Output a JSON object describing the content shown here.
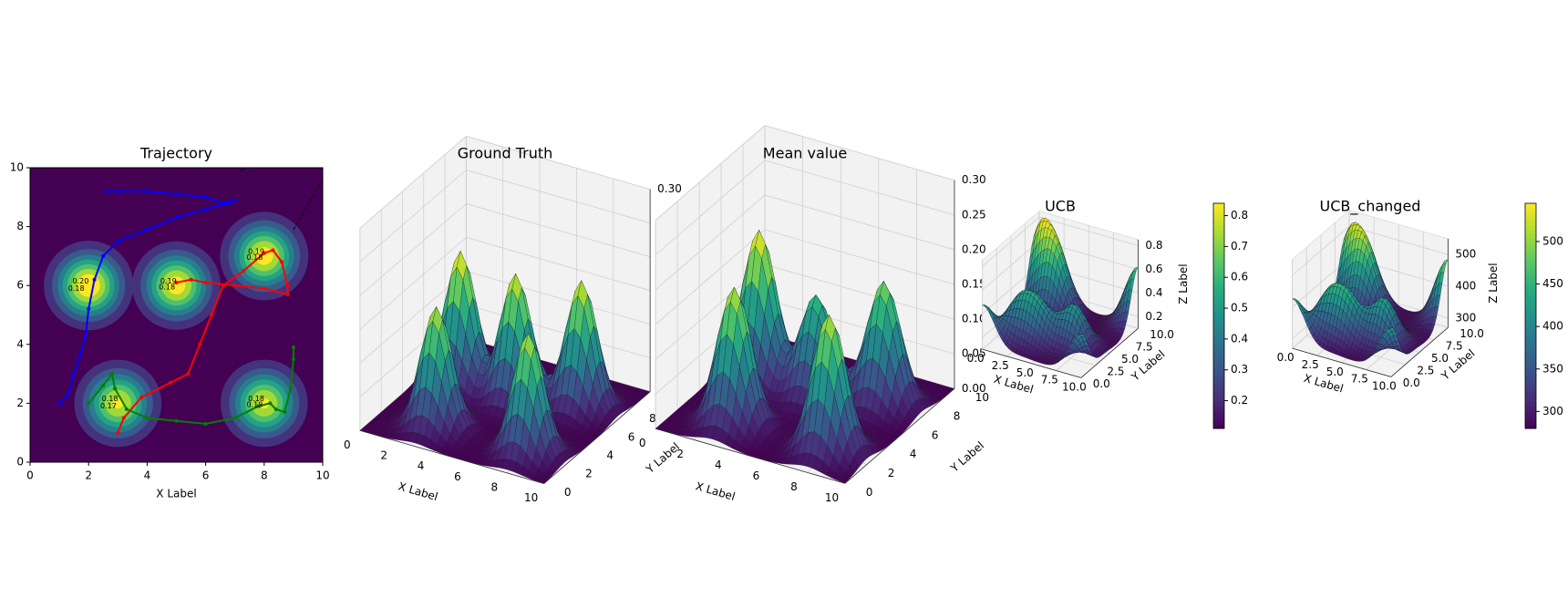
{
  "chart_data": [
    {
      "type": "contour",
      "title": "Trajectory",
      "xlabel": "X Label",
      "xlim": [
        0,
        10
      ],
      "ylim": [
        0,
        10
      ],
      "xticks": [
        0,
        2,
        4,
        6,
        8,
        10
      ],
      "yticks": [
        0,
        2,
        4,
        6,
        8,
        10
      ],
      "surface": {
        "base": 0,
        "sigma": 0.75,
        "x": [
          2,
          5,
          8,
          3,
          8
        ],
        "y": [
          6,
          6,
          7,
          2,
          2
        ],
        "z": [
          0.2,
          0.19,
          0.19,
          0.18,
          0.18
        ]
      },
      "series": [
        {
          "color": "#0000ff",
          "x": [
            2.6,
            3,
            4,
            5,
            6,
            6.6,
            7,
            6.8,
            6,
            5,
            4,
            3,
            2.5,
            2.2,
            2,
            1.9,
            1.7,
            1.5,
            1.3,
            1
          ],
          "values": [
            9.2,
            9.2,
            9.2,
            9.1,
            9,
            8.8,
            8.9,
            8.8,
            8.6,
            8.3,
            7.9,
            7.5,
            7,
            6.2,
            5.2,
            4.3,
            3.6,
            3,
            2.3,
            2
          ]
        },
        {
          "color": "#ff0000",
          "x": [
            3,
            3.2,
            3.8,
            4.8,
            5.4,
            5.8,
            6.2,
            6.6,
            7.3,
            8,
            8.3,
            8.6,
            8.8,
            8.8,
            8,
            7,
            6,
            5.5,
            5
          ],
          "values": [
            1,
            1.5,
            2.2,
            2.7,
            3,
            4,
            5,
            6,
            6.5,
            7.1,
            7.2,
            6.8,
            6,
            5.7,
            5.9,
            6,
            6.1,
            6.2,
            6.1
          ]
        },
        {
          "color": "#008000",
          "x": [
            2,
            2.5,
            2.8,
            2.9,
            3.3,
            4,
            5,
            6,
            7,
            7.8,
            8.2,
            8.4,
            8.7,
            8.9,
            9,
            9
          ],
          "values": [
            2,
            2.6,
            3,
            2.5,
            1.8,
            1.5,
            1.4,
            1.3,
            1.5,
            1.9,
            2,
            1.8,
            1.7,
            2.5,
            3.5,
            3.9
          ]
        }
      ],
      "lines": [
        {
          "color": "#000000",
          "x": [
            7.2,
            7.6
          ],
          "values": [
            9.9,
            10.1
          ]
        },
        {
          "color": "#000000",
          "x": [
            9,
            10
          ],
          "values": [
            7.9,
            9.6
          ]
        }
      ],
      "annotations": [
        {
          "text": "0.20",
          "x": 1.45,
          "y": 6.15,
          "color": "#000000"
        },
        {
          "text": "0.18",
          "x": 1.3,
          "y": 5.9,
          "color": "#ff0000"
        },
        {
          "text": "0.19",
          "x": 4.45,
          "y": 6.15,
          "color": "#000000"
        },
        {
          "text": "0.18",
          "x": 4.4,
          "y": 5.95,
          "color": "#ff0000"
        },
        {
          "text": "0.19",
          "x": 7.45,
          "y": 7.15,
          "color": "#000000"
        },
        {
          "text": "0.18",
          "x": 7.4,
          "y": 6.95,
          "color": "#ff0000"
        },
        {
          "text": "0.18",
          "x": 2.45,
          "y": 2.15,
          "color": "#000000"
        },
        {
          "text": "0.17",
          "x": 2.4,
          "y": 1.9,
          "color": "#ff0000"
        },
        {
          "text": "0.18",
          "x": 7.45,
          "y": 2.15,
          "color": "#000000"
        },
        {
          "text": "0.18",
          "x": 7.4,
          "y": 1.95,
          "color": "#ff0000"
        }
      ]
    },
    {
      "type": "surface3d",
      "title": "Ground Truth",
      "xlabel": "X Label",
      "ylabel": "Y Label",
      "xlim": [
        0,
        10
      ],
      "ylim": [
        0,
        10
      ],
      "zlim": [
        0,
        0.3
      ],
      "xticks": [
        0,
        2,
        4,
        6,
        8,
        10
      ],
      "yticks": [
        0,
        2,
        4,
        6,
        8,
        10
      ],
      "zticks": [
        {
          "value": 0,
          "label": "0.00"
        },
        {
          "value": 0.05,
          "label": "0.05"
        },
        {
          "value": 0.1,
          "label": "0.10"
        },
        {
          "value": 0.15,
          "label": "0.15"
        },
        {
          "value": 0.2,
          "label": "0.20"
        },
        {
          "value": 0.25,
          "label": "0.25"
        },
        {
          "value": 0.3,
          "label": "0.30"
        }
      ],
      "surface": {
        "base": 0,
        "sigma": 0.75,
        "x": [
          2,
          5,
          8,
          3,
          8
        ],
        "y": [
          6,
          6,
          7,
          2,
          2
        ],
        "z": [
          0.2,
          0.19,
          0.19,
          0.18,
          0.18
        ]
      }
    },
    {
      "type": "surface3d",
      "title": "Mean value",
      "xlabel": "X Label",
      "ylabel": "Y Label",
      "xlim": [
        0,
        10
      ],
      "ylim": [
        0,
        10
      ],
      "zlim": [
        0,
        0.3
      ],
      "xticks": [
        0,
        2,
        4,
        6,
        8,
        10
      ],
      "yticks": [
        0,
        2,
        4,
        6,
        8,
        10
      ],
      "zticks": [
        {
          "value": 0,
          "label": "0.00"
        },
        {
          "value": 0.05,
          "label": "0.05"
        },
        {
          "value": 0.1,
          "label": "0.10"
        },
        {
          "value": 0.15,
          "label": "0.15"
        },
        {
          "value": 0.2,
          "label": "0.20"
        },
        {
          "value": 0.25,
          "label": "0.25"
        },
        {
          "value": 0.3,
          "label": "0.30"
        }
      ],
      "surface": {
        "base": 0,
        "sigma": 0.8,
        "x": [
          2,
          5,
          8,
          3,
          8
        ],
        "y": [
          6,
          6,
          7,
          2,
          2
        ],
        "z": [
          0.22,
          0.15,
          0.18,
          0.2,
          0.2
        ]
      }
    },
    {
      "type": "surface3d",
      "title": "UCB",
      "xlabel": "X Label",
      "ylabel": "Y Label",
      "zlabel": "Z Label",
      "xlim": [
        0,
        10
      ],
      "ylim": [
        0,
        10
      ],
      "zlim": [
        0.1,
        0.85
      ],
      "xticks": [
        {
          "value": 0,
          "label": "0.0"
        },
        {
          "value": 2.5,
          "label": "2.5"
        },
        {
          "value": 5,
          "label": "5.0"
        },
        {
          "value": 7.5,
          "label": "7.5"
        },
        {
          "value": 10,
          "label": "10.0"
        }
      ],
      "yticks": [
        {
          "value": 0,
          "label": "0.0"
        },
        {
          "value": 2.5,
          "label": "2.5"
        },
        {
          "value": 5,
          "label": "5.0"
        },
        {
          "value": 7.5,
          "label": "7.5"
        },
        {
          "value": 10,
          "label": "10.0"
        }
      ],
      "zticks": [
        0.2,
        0.4,
        0.6,
        0.8
      ],
      "colorbar": {
        "clim": [
          0.11,
          0.84
        ],
        "ticks": [
          0.2,
          0.3,
          0.4,
          0.5,
          0.6,
          0.7,
          0.8
        ]
      },
      "surface": {
        "base": 0.12,
        "sigma": 1.2,
        "x": [
          0.5,
          2.5,
          10,
          0,
          10,
          7,
          4,
          2
        ],
        "y": [
          9.5,
          8.5,
          10,
          0,
          0,
          4,
          3,
          3
        ],
        "z": [
          0.6,
          0.5,
          0.5,
          0.35,
          0.35,
          0.35,
          0.3,
          0.3
        ]
      }
    },
    {
      "type": "surface3d",
      "title": "UCB_changed",
      "xlabel": "X Label",
      "ylabel": "Y Label",
      "zlabel": "Z Label",
      "xlim": [
        0,
        10
      ],
      "ylim": [
        0,
        10
      ],
      "zlim": [
        270,
        550
      ],
      "xticks": [
        {
          "value": 0,
          "label": "0.0"
        },
        {
          "value": 2.5,
          "label": "2.5"
        },
        {
          "value": 5,
          "label": "5.0"
        },
        {
          "value": 7.5,
          "label": "7.5"
        },
        {
          "value": 10,
          "label": "10.0"
        }
      ],
      "yticks": [
        {
          "value": 0,
          "label": "0.0"
        },
        {
          "value": 2.5,
          "label": "2.5"
        },
        {
          "value": 5,
          "label": "5.0"
        },
        {
          "value": 7.5,
          "label": "7.5"
        },
        {
          "value": 10,
          "label": "10.0"
        }
      ],
      "zticks": [
        300,
        400,
        500
      ],
      "colorbar": {
        "clim": [
          280,
          545
        ],
        "ticks": [
          300,
          350,
          400,
          450,
          500
        ]
      },
      "surface": {
        "base": 285,
        "sigma": 1.2,
        "x": [
          0.5,
          2.5,
          10,
          0,
          10,
          7,
          4,
          2
        ],
        "y": [
          9.5,
          8.5,
          10,
          0,
          0,
          4,
          3,
          3
        ],
        "z": [
          200,
          180,
          200,
          140,
          140,
          140,
          120,
          120
        ]
      }
    }
  ]
}
